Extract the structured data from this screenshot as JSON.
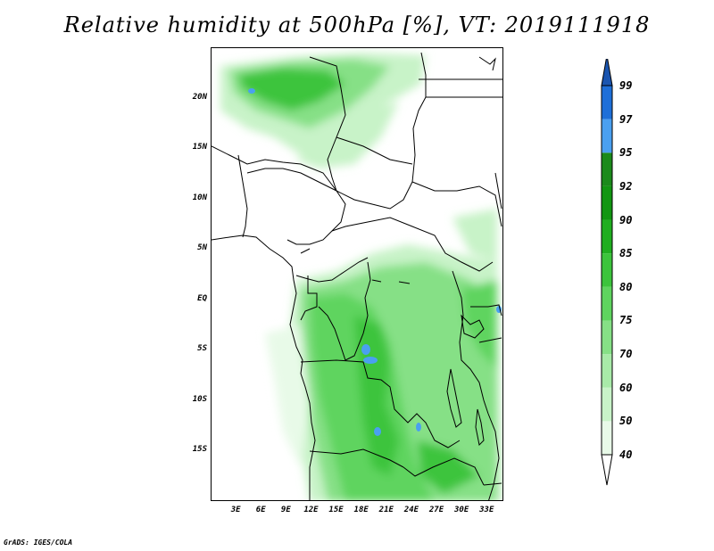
{
  "title": "Relative humidity at 500hPa [%], VT: 2019111918",
  "credit": "GrADS: IGES/COLA",
  "map": {
    "lat_labels": [
      {
        "text": "20N",
        "lat": 20
      },
      {
        "text": "15N",
        "lat": 15
      },
      {
        "text": "10N",
        "lat": 10
      },
      {
        "text": "5N",
        "lat": 5
      },
      {
        "text": "EQ",
        "lat": 0
      },
      {
        "text": "5S",
        "lat": -5
      },
      {
        "text": "10S",
        "lat": -10
      },
      {
        "text": "15S",
        "lat": -15
      }
    ],
    "lon_labels": [
      {
        "text": "3E",
        "lon": 3
      },
      {
        "text": "6E",
        "lon": 6
      },
      {
        "text": "9E",
        "lon": 9
      },
      {
        "text": "12E",
        "lon": 12
      },
      {
        "text": "15E",
        "lon": 15
      },
      {
        "text": "18E",
        "lon": 18
      },
      {
        "text": "21E",
        "lon": 21
      },
      {
        "text": "24E",
        "lon": 24
      },
      {
        "text": "27E",
        "lon": 27
      },
      {
        "text": "30E",
        "lon": 30
      },
      {
        "text": "33E",
        "lon": 33
      }
    ],
    "lon_range": [
      0,
      35
    ],
    "lat_range": [
      -20,
      25
    ]
  },
  "colorbar": {
    "levels": [
      "40",
      "50",
      "60",
      "70",
      "75",
      "80",
      "85",
      "90",
      "92",
      "95",
      "97",
      "99"
    ],
    "colors": [
      "#ffffff",
      "#e8fae8",
      "#c8f3c8",
      "#a8eaa8",
      "#86e086",
      "#5fd45f",
      "#3cc43c",
      "#20ae20",
      "#129612",
      "#1b8a1b",
      "#4aa0f0",
      "#1e6fd8",
      "#1a55b0"
    ]
  }
}
